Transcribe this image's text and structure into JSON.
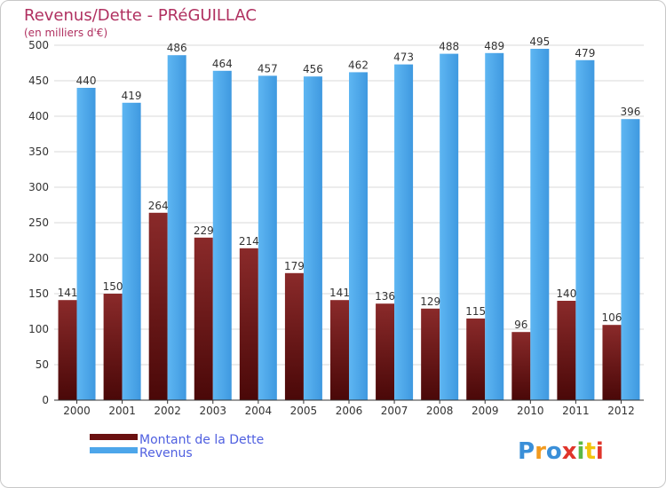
{
  "chart_data": {
    "type": "bar",
    "title": "Revenus/Dette - PRéGUILLAC",
    "subtitle": "(en milliers d'€)",
    "categories": [
      "2000",
      "2001",
      "2002",
      "2003",
      "2004",
      "2005",
      "2006",
      "2007",
      "2008",
      "2009",
      "2010",
      "2011",
      "2012"
    ],
    "series": [
      {
        "name": "Montant de la Dette",
        "color": "#7a1c1c",
        "values": [
          141,
          150,
          264,
          229,
          214,
          179,
          141,
          136,
          129,
          115,
          96,
          140,
          106
        ]
      },
      {
        "name": "Revenus",
        "color": "#4da6ea",
        "values": [
          440,
          419,
          486,
          464,
          457,
          456,
          462,
          473,
          488,
          489,
          495,
          479,
          396
        ]
      }
    ],
    "ylim": [
      0,
      500
    ],
    "yticks": [
      0,
      50,
      100,
      150,
      200,
      250,
      300,
      350,
      400,
      450,
      500
    ],
    "grid": true,
    "legend_position": "bottom-left"
  },
  "brand": {
    "letters": [
      "P",
      "r",
      "o",
      "x",
      "i",
      "t",
      "i"
    ],
    "colors": [
      "#3a8fd8",
      "#f29a1e",
      "#3a8fd8",
      "#e0352b",
      "#5bb846",
      "#f2c40e",
      "#e0352b"
    ]
  }
}
